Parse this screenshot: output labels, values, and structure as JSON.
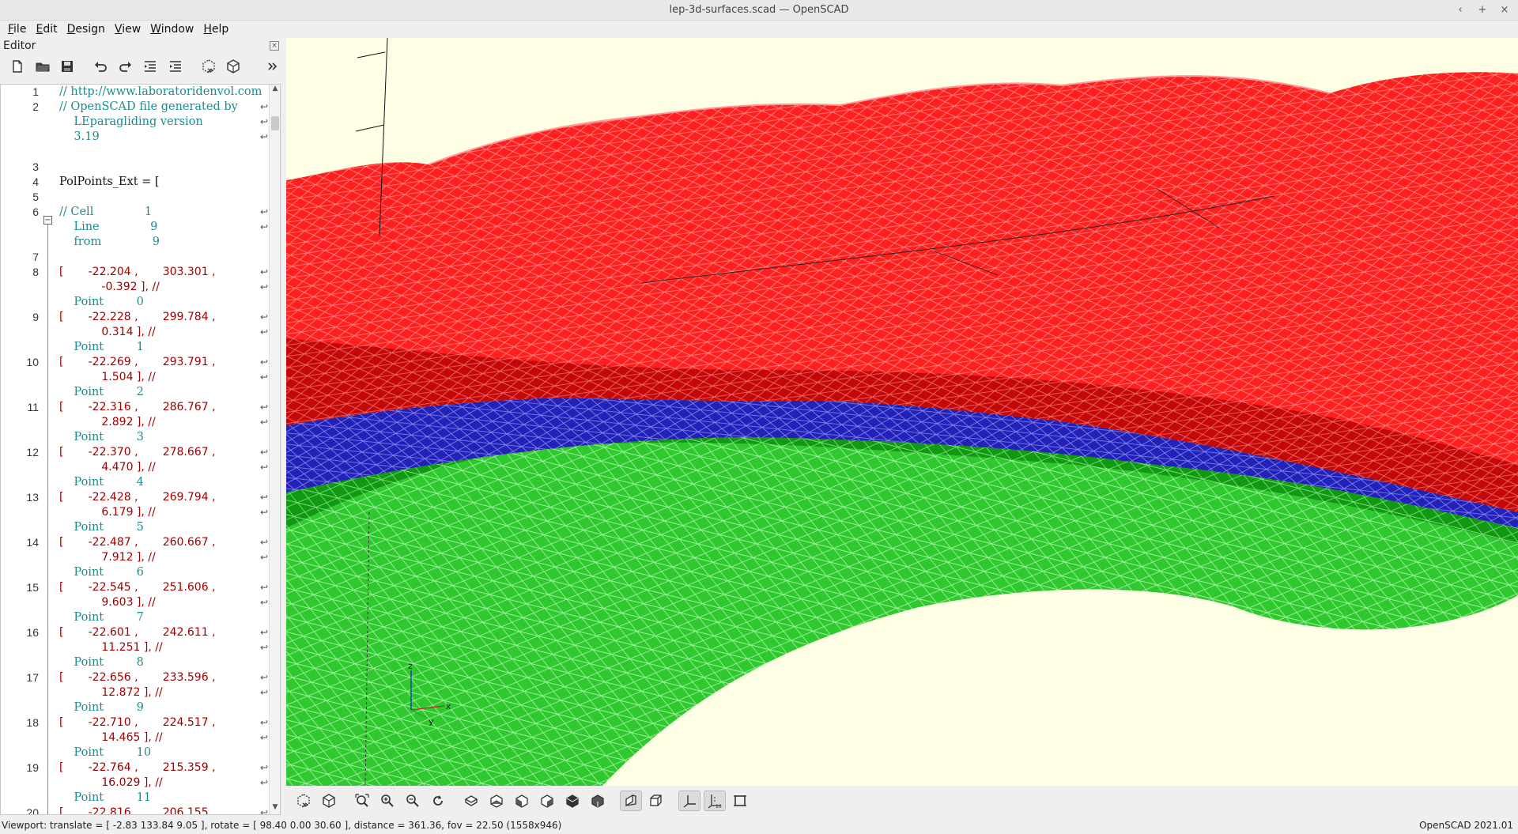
{
  "window": {
    "title": "lep-3d-surfaces.scad — OpenSCAD",
    "controls": [
      "‹",
      "+",
      "×"
    ]
  },
  "menubar": [
    {
      "label": "File",
      "mnemonic": "F",
      "rest": "ile"
    },
    {
      "label": "Edit",
      "mnemonic": "E",
      "rest": "dit"
    },
    {
      "label": "Design",
      "mnemonic": "D",
      "rest": "esign"
    },
    {
      "label": "View",
      "mnemonic": "V",
      "rest": "iew"
    },
    {
      "label": "Window",
      "mnemonic": "W",
      "rest": "indow"
    },
    {
      "label": "Help",
      "mnemonic": "H",
      "rest": "elp"
    }
  ],
  "editor": {
    "title": "Editor",
    "toolbar": [
      "new-file-icon",
      "open-file-icon",
      "save-file-icon",
      "undo-icon",
      "redo-icon",
      "unindent-icon",
      "indent-icon",
      "preview-icon",
      "render-icon",
      "more-icon"
    ],
    "lines": [
      {
        "n": "1",
        "text": "// http://www.laboratoridenvol.com",
        "kind": "comment"
      },
      {
        "n": "2",
        "text": "// OpenSCAD file generated by",
        "kind": "comment",
        "wrap": true
      },
      {
        "n": "",
        "text": "    LEparagliding version",
        "kind": "comment",
        "wrap": true
      },
      {
        "n": "",
        "text": "    3.19",
        "kind": "comment",
        "wrap": true
      },
      {
        "n": "",
        "text": "",
        "kind": "blank"
      },
      {
        "n": "3",
        "text": "",
        "kind": "blank"
      },
      {
        "n": "4",
        "text": "PolPoints_Ext = [",
        "kind": "ident"
      },
      {
        "n": "5",
        "text": "",
        "kind": "blank"
      },
      {
        "n": "6",
        "text": "// Cell              1",
        "kind": "comment",
        "wrap": true
      },
      {
        "n": "",
        "text": "    Line              9",
        "kind": "comment",
        "wrap": true
      },
      {
        "n": "",
        "text": "    from              9",
        "kind": "comment"
      },
      {
        "n": "7",
        "text": "",
        "kind": "blank"
      },
      {
        "n": "8",
        "text": "[       -22.204 ,       303.301 ,",
        "kind": "data",
        "wrap": true
      },
      {
        "n": "",
        "text": "            -0.392 ], //",
        "kind": "data",
        "wrap": true
      },
      {
        "n": "",
        "text": "    Point         0",
        "kind": "comment"
      },
      {
        "n": "9",
        "text": "[       -22.228 ,       299.784 ,",
        "kind": "data",
        "wrap": true
      },
      {
        "n": "",
        "text": "            0.314 ], //",
        "kind": "data",
        "wrap": true
      },
      {
        "n": "",
        "text": "    Point         1",
        "kind": "comment"
      },
      {
        "n": "10",
        "text": "[       -22.269 ,       293.791 ,",
        "kind": "data",
        "wrap": true
      },
      {
        "n": "",
        "text": "            1.504 ], //",
        "kind": "data",
        "wrap": true
      },
      {
        "n": "",
        "text": "    Point         2",
        "kind": "comment"
      },
      {
        "n": "11",
        "text": "[       -22.316 ,       286.767 ,",
        "kind": "data",
        "wrap": true
      },
      {
        "n": "",
        "text": "            2.892 ], //",
        "kind": "data",
        "wrap": true
      },
      {
        "n": "",
        "text": "    Point         3",
        "kind": "comment"
      },
      {
        "n": "12",
        "text": "[       -22.370 ,       278.667 ,",
        "kind": "data",
        "wrap": true
      },
      {
        "n": "",
        "text": "            4.470 ], //",
        "kind": "data",
        "wrap": true
      },
      {
        "n": "",
        "text": "    Point         4",
        "kind": "comment"
      },
      {
        "n": "13",
        "text": "[       -22.428 ,       269.794 ,",
        "kind": "data",
        "wrap": true
      },
      {
        "n": "",
        "text": "            6.179 ], //",
        "kind": "data",
        "wrap": true
      },
      {
        "n": "",
        "text": "    Point         5",
        "kind": "comment"
      },
      {
        "n": "14",
        "text": "[       -22.487 ,       260.667 ,",
        "kind": "data",
        "wrap": true
      },
      {
        "n": "",
        "text": "            7.912 ], //",
        "kind": "data",
        "wrap": true
      },
      {
        "n": "",
        "text": "    Point         6",
        "kind": "comment"
      },
      {
        "n": "15",
        "text": "[       -22.545 ,       251.606 ,",
        "kind": "data",
        "wrap": true
      },
      {
        "n": "",
        "text": "            9.603 ], //",
        "kind": "data",
        "wrap": true
      },
      {
        "n": "",
        "text": "    Point         7",
        "kind": "comment"
      },
      {
        "n": "16",
        "text": "[       -22.601 ,       242.611 ,",
        "kind": "data",
        "wrap": true
      },
      {
        "n": "",
        "text": "            11.251 ], //",
        "kind": "data",
        "wrap": true
      },
      {
        "n": "",
        "text": "    Point         8",
        "kind": "comment"
      },
      {
        "n": "17",
        "text": "[       -22.656 ,       233.596 ,",
        "kind": "data",
        "wrap": true
      },
      {
        "n": "",
        "text": "            12.872 ], //",
        "kind": "data",
        "wrap": true
      },
      {
        "n": "",
        "text": "    Point         9",
        "kind": "comment"
      },
      {
        "n": "18",
        "text": "[       -22.710 ,       224.517 ,",
        "kind": "data",
        "wrap": true
      },
      {
        "n": "",
        "text": "            14.465 ], //",
        "kind": "data",
        "wrap": true
      },
      {
        "n": "",
        "text": "    Point         10",
        "kind": "comment"
      },
      {
        "n": "19",
        "text": "[       -22.764 ,       215.359 ,",
        "kind": "data",
        "wrap": true
      },
      {
        "n": "",
        "text": "            16.029 ], //",
        "kind": "data",
        "wrap": true
      },
      {
        "n": "",
        "text": "    Point         11",
        "kind": "comment"
      },
      {
        "n": "20",
        "text": "[       -22.816 ,       206.155 ,",
        "kind": "data",
        "wrap": true
      }
    ]
  },
  "viewport": {
    "background": "#ffffe5",
    "surface_colors": {
      "top": "#ff1a1a",
      "middle": "#2a2ad0",
      "bottom": "#22c422"
    },
    "axes_labels": {
      "z": "z",
      "x": "x",
      "y": "y"
    },
    "toolbar": [
      "preview-icon",
      "render-icon",
      "view-all-icon",
      "zoom-in-icon",
      "zoom-out-icon",
      "reset-view-icon",
      "view-top-icon",
      "view-bottom-icon",
      "view-left-icon",
      "view-right-icon",
      "view-front-icon",
      "view-back-icon",
      "perspective-icon",
      "orthogonal-icon",
      "show-axes-icon",
      "show-scale-icon",
      "show-edges-icon"
    ]
  },
  "status": {
    "left": "Viewport: translate = [ -2.83 133.84 9.05 ], rotate = [ 98.40 0.00 30.60 ], distance = 361.36, fov = 22.50 (1558x946)",
    "right": "OpenSCAD 2021.01"
  }
}
